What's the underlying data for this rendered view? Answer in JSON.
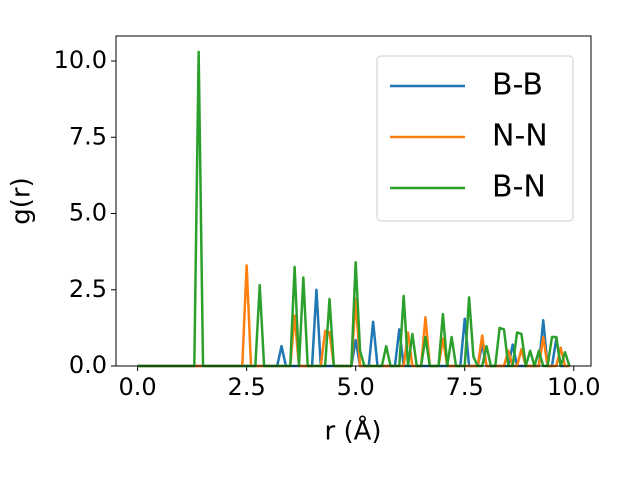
{
  "chart_data": {
    "type": "line",
    "x_label": "r (Å)",
    "y_label": "g(r)",
    "x": [
      0,
      0.1,
      0.2,
      0.3,
      0.4,
      0.5,
      0.6,
      0.7,
      0.8,
      0.9,
      1.0,
      1.1,
      1.2,
      1.3,
      1.4,
      1.5,
      1.6,
      1.7,
      1.8,
      1.9,
      2.0,
      2.1,
      2.2,
      2.3,
      2.4,
      2.5,
      2.6,
      2.7,
      2.8,
      2.9,
      3.0,
      3.1,
      3.2,
      3.3,
      3.4,
      3.5,
      3.6,
      3.7,
      3.8,
      3.9,
      4.0,
      4.1,
      4.2,
      4.3,
      4.4,
      4.5,
      4.6,
      4.7,
      4.8,
      4.9,
      5.0,
      5.1,
      5.2,
      5.3,
      5.4,
      5.5,
      5.6,
      5.7,
      5.8,
      5.9,
      6.0,
      6.1,
      6.2,
      6.3,
      6.4,
      6.5,
      6.6,
      6.7,
      6.8,
      6.9,
      7.0,
      7.1,
      7.2,
      7.3,
      7.4,
      7.5,
      7.6,
      7.7,
      7.8,
      7.9,
      8.0,
      8.1,
      8.2,
      8.3,
      8.4,
      8.5,
      8.6,
      8.7,
      8.8,
      8.9,
      9.0,
      9.1,
      9.2,
      9.3,
      9.4,
      9.5,
      9.6,
      9.7,
      9.8,
      9.9
    ],
    "series": [
      {
        "name": "B-B",
        "color": "#1f77b4",
        "values": [
          0,
          0,
          0,
          0,
          0,
          0,
          0,
          0,
          0,
          0,
          0,
          0,
          0,
          0,
          0,
          0,
          0,
          0,
          0,
          0,
          0,
          0,
          0,
          0,
          0,
          0,
          0,
          0,
          0,
          0,
          0,
          0,
          0,
          0.65,
          0,
          0,
          0,
          0,
          0,
          0,
          0,
          2.5,
          0,
          0,
          0,
          0,
          0,
          0,
          0,
          0,
          0.85,
          0,
          0,
          0,
          1.45,
          0,
          0,
          0,
          0,
          0,
          1.2,
          0,
          0,
          0,
          0,
          0,
          0,
          0,
          0,
          0,
          0,
          0,
          0,
          0,
          0,
          1.55,
          0,
          0,
          0,
          0.7,
          0,
          0,
          0,
          0,
          0,
          0,
          0.7,
          0,
          0,
          0,
          0,
          0,
          0,
          1.5,
          0,
          0,
          0.9,
          0,
          0,
          0
        ]
      },
      {
        "name": "N-N",
        "color": "#ff7f0e",
        "values": [
          0,
          0,
          0,
          0,
          0,
          0,
          0,
          0,
          0,
          0,
          0,
          0,
          0,
          0,
          0,
          0,
          0,
          0,
          0,
          0,
          0,
          0,
          0,
          0,
          0,
          3.3,
          0,
          0,
          0,
          0,
          0,
          0,
          0,
          0,
          0,
          0,
          1.65,
          0,
          0,
          0,
          0,
          0,
          0,
          1.15,
          1.1,
          0,
          0,
          0,
          0,
          0,
          2.2,
          0,
          0,
          0,
          0,
          0,
          0,
          0,
          0,
          0,
          0,
          0,
          1.1,
          0,
          0,
          0,
          1.6,
          0,
          0,
          0,
          0.9,
          0,
          0,
          0,
          0,
          0,
          0,
          0,
          0,
          1.0,
          0,
          0,
          0,
          0,
          0,
          0.5,
          0,
          0,
          0.55,
          0,
          0,
          0,
          0,
          0.95,
          0,
          0,
          0,
          0.6,
          0,
          0
        ]
      },
      {
        "name": "B-N",
        "color": "#2ca02c",
        "values": [
          0,
          0,
          0,
          0,
          0,
          0,
          0,
          0,
          0,
          0,
          0,
          0,
          0,
          0,
          10.3,
          0,
          0,
          0,
          0,
          0,
          0,
          0,
          0,
          0,
          0,
          0,
          0,
          0,
          2.65,
          0,
          0,
          0,
          0,
          0,
          0,
          0,
          3.25,
          0,
          2.9,
          0,
          0,
          0,
          0,
          0,
          2.2,
          0,
          0,
          0,
          0,
          0,
          3.4,
          0.5,
          0,
          0,
          0,
          0,
          0,
          0.65,
          0,
          0,
          0,
          2.3,
          0,
          1.05,
          0,
          0,
          0.95,
          0,
          0,
          0,
          1.7,
          0,
          0.95,
          0,
          0,
          0,
          2.25,
          0.3,
          0,
          0,
          0.65,
          0,
          0,
          1.25,
          1.2,
          0,
          0,
          1.1,
          1.05,
          0,
          0.5,
          0,
          0.5,
          0,
          0,
          0.95,
          0.95,
          0,
          0.45,
          0
        ]
      }
    ],
    "xlim": [
      -0.495,
      10.395
    ],
    "ylim": [
      0,
      10.82
    ],
    "xticks": [
      {
        "value": 0,
        "label": "0.0"
      },
      {
        "value": 2.5,
        "label": "2.5"
      },
      {
        "value": 5,
        "label": "5.0"
      },
      {
        "value": 7.5,
        "label": "7.5"
      },
      {
        "value": 10,
        "label": "10.0"
      }
    ],
    "yticks": [
      {
        "value": 0,
        "label": "0.0"
      },
      {
        "value": 2.5,
        "label": "2.5"
      },
      {
        "value": 5,
        "label": "5.0"
      },
      {
        "value": 7.5,
        "label": "7.5"
      },
      {
        "value": 10,
        "label": "10.0"
      }
    ],
    "legend": "upper right",
    "grid": false
  }
}
